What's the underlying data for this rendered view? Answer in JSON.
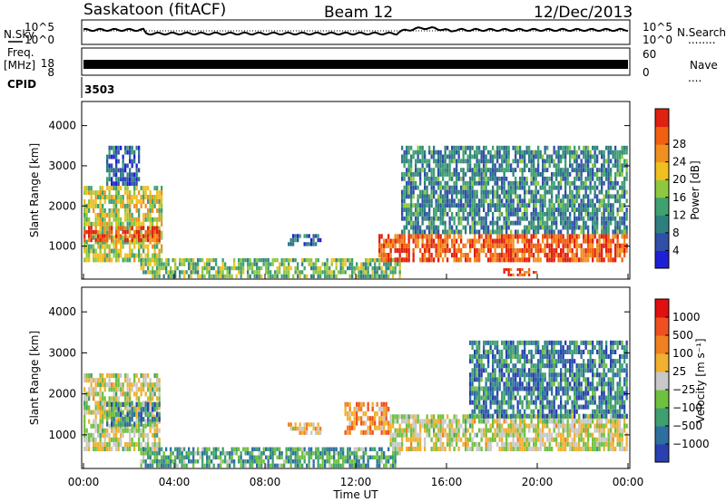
{
  "header": {
    "station": "Saskatoon (fitACF)",
    "beam": "Beam 12",
    "date": "12/Dec/2013"
  },
  "strip_labels": {
    "nsky": "N.Sky",
    "nsearch": "N.Search",
    "nsearch_dots": "........",
    "freq": "Freq.",
    "freq_unit": "[MHz]",
    "nave": "Nave",
    "nave_dots": "....",
    "cpid": "CPID",
    "cpid_value": "3503",
    "noise_ticks_left": [
      "10^5",
      "10^0"
    ],
    "noise_ticks_right": [
      "10^5",
      "10^0"
    ],
    "freq_ticks": [
      "18",
      "8"
    ],
    "nave_ticks": [
      "60",
      "0"
    ]
  },
  "chart_data": [
    {
      "type": "heatmap",
      "name": "power",
      "ylabel": "Slant Range [km]",
      "xlabel": "",
      "xlim": [
        0,
        24
      ],
      "ylim": [
        180,
        4600
      ],
      "x_ticks": [
        "00:00",
        "04:00",
        "08:00",
        "12:00",
        "16:00",
        "20:00",
        "00:00"
      ],
      "y_ticks": [
        "1000",
        "2000",
        "3000",
        "4000"
      ],
      "colorbar": {
        "label": "Power [dB]",
        "ticks": [
          "4",
          "8",
          "12",
          "16",
          "20",
          "24",
          "28"
        ],
        "colors": [
          "#1f1fd6",
          "#2f4fa8",
          "#2f7f7f",
          "#3fa070",
          "#8fc83f",
          "#f0c020",
          "#f09020",
          "#f06010",
          "#e02010"
        ]
      },
      "regions": [
        {
          "t": [
            0.0,
            3.5
          ],
          "r": [
            600,
            2500
          ],
          "level": 0.55
        },
        {
          "t": [
            0.0,
            3.4
          ],
          "r": [
            1100,
            1500
          ],
          "level": 0.9
        },
        {
          "t": [
            1.0,
            2.5
          ],
          "r": [
            2500,
            3500
          ],
          "level": 0.2
        },
        {
          "t": [
            2.5,
            14.0
          ],
          "r": [
            200,
            700
          ],
          "level": 0.45
        },
        {
          "t": [
            9.0,
            10.5
          ],
          "r": [
            1000,
            1300
          ],
          "level": 0.2
        },
        {
          "t": [
            13.0,
            24.0
          ],
          "r": [
            600,
            1300
          ],
          "level": 0.85
        },
        {
          "t": [
            14.0,
            24.0
          ],
          "r": [
            1300,
            3500
          ],
          "level": 0.3
        },
        {
          "t": [
            18.5,
            20.0
          ],
          "r": [
            250,
            450
          ],
          "level": 0.9
        }
      ]
    },
    {
      "type": "heatmap",
      "name": "velocity",
      "ylabel": "Slant Range [km]",
      "xlabel": "Time UT",
      "xlim": [
        0,
        24
      ],
      "ylim": [
        180,
        4600
      ],
      "x_ticks": [
        "00:00",
        "04:00",
        "08:00",
        "12:00",
        "16:00",
        "20:00",
        "00:00"
      ],
      "y_ticks": [
        "1000",
        "2000",
        "3000",
        "4000"
      ],
      "colorbar": {
        "label": "Velocity [m s⁻¹]",
        "ticks": [
          "1000",
          "500",
          "100",
          "25",
          "−25",
          "−100",
          "−500",
          "−1000"
        ],
        "colors": [
          "#2a3fb0",
          "#2f6f9f",
          "#3f9f6f",
          "#70c040",
          "#c8c8c8",
          "#f0b030",
          "#f08020",
          "#f05020",
          "#e01010"
        ]
      },
      "regions": [
        {
          "t": [
            0.0,
            3.4
          ],
          "r": [
            600,
            2500
          ],
          "level": 0.5
        },
        {
          "t": [
            1.0,
            3.4
          ],
          "r": [
            1200,
            1800
          ],
          "level": 0.25
        },
        {
          "t": [
            2.5,
            14.0
          ],
          "r": [
            200,
            700
          ],
          "level": 0.3
        },
        {
          "t": [
            9.0,
            10.5
          ],
          "r": [
            1000,
            1300
          ],
          "level": 0.6
        },
        {
          "t": [
            11.5,
            13.5
          ],
          "r": [
            1000,
            1800
          ],
          "level": 0.7
        },
        {
          "t": [
            13.5,
            24.0
          ],
          "r": [
            600,
            1500
          ],
          "level": 0.5
        },
        {
          "t": [
            17.0,
            24.0
          ],
          "r": [
            1400,
            3300
          ],
          "level": 0.2
        }
      ]
    }
  ]
}
